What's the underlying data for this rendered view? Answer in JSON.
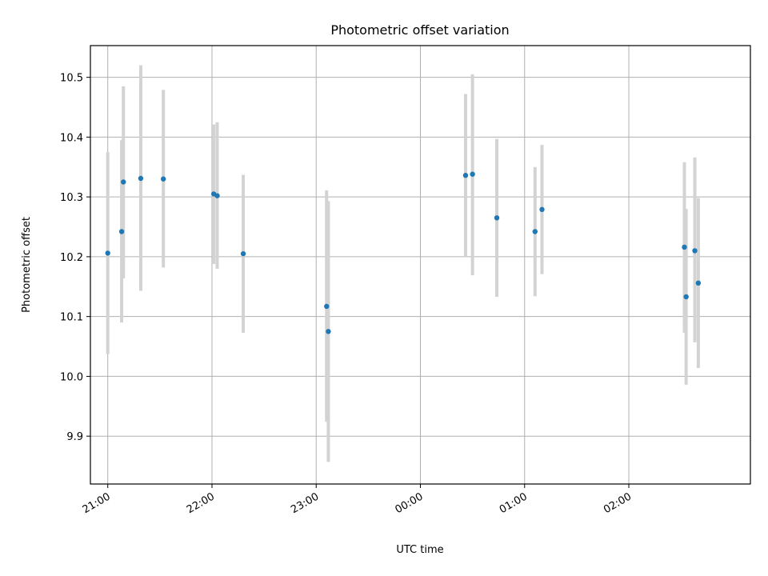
{
  "chart_data": {
    "type": "scatter",
    "title": "Photometric offset variation",
    "xlabel": "UTC time",
    "ylabel": "Photometric offset",
    "x_tick_labels": [
      "21:00",
      "22:00",
      "23:00",
      "00:00",
      "01:00",
      "02:00"
    ],
    "y_tick_labels": [
      "9.9",
      "10.0",
      "10.1",
      "10.2",
      "10.3",
      "10.4",
      "10.5"
    ],
    "y_ticks": [
      9.9,
      10.0,
      10.1,
      10.2,
      10.3,
      10.4,
      10.5
    ],
    "ylim": [
      9.82,
      10.553
    ],
    "xlim": [
      "20:50",
      "03:10"
    ],
    "grid": true,
    "colors": {
      "point": "#1f77b4",
      "errorbar": "#d3d3d3",
      "grid": "#b0b0b0"
    },
    "points": [
      {
        "x": "21:00",
        "y": 10.206,
        "yerr_low": 10.037,
        "yerr_high": 10.375
      },
      {
        "x": "21:08",
        "y": 10.242,
        "yerr_low": 10.09,
        "yerr_high": 10.395
      },
      {
        "x": "21:09",
        "y": 10.325,
        "yerr_low": 10.164,
        "yerr_high": 10.485
      },
      {
        "x": "21:19",
        "y": 10.331,
        "yerr_low": 10.143,
        "yerr_high": 10.52
      },
      {
        "x": "21:32",
        "y": 10.33,
        "yerr_low": 10.182,
        "yerr_high": 10.479
      },
      {
        "x": "22:01",
        "y": 10.305,
        "yerr_low": 10.188,
        "yerr_high": 10.421
      },
      {
        "x": "22:03",
        "y": 10.302,
        "yerr_low": 10.18,
        "yerr_high": 10.425
      },
      {
        "x": "22:18",
        "y": 10.205,
        "yerr_low": 10.073,
        "yerr_high": 10.337
      },
      {
        "x": "23:06",
        "y": 10.117,
        "yerr_low": 9.924,
        "yerr_high": 10.311
      },
      {
        "x": "23:07",
        "y": 10.075,
        "yerr_low": 9.857,
        "yerr_high": 10.293
      },
      {
        "x": "00:26",
        "y": 10.336,
        "yerr_low": 10.2,
        "yerr_high": 10.472
      },
      {
        "x": "00:30",
        "y": 10.338,
        "yerr_low": 10.169,
        "yerr_high": 10.505
      },
      {
        "x": "00:44",
        "y": 10.265,
        "yerr_low": 10.133,
        "yerr_high": 10.397
      },
      {
        "x": "01:06",
        "y": 10.242,
        "yerr_low": 10.134,
        "yerr_high": 10.35
      },
      {
        "x": "01:10",
        "y": 10.279,
        "yerr_low": 10.171,
        "yerr_high": 10.387
      },
      {
        "x": "02:32",
        "y": 10.216,
        "yerr_low": 10.073,
        "yerr_high": 10.358
      },
      {
        "x": "02:33",
        "y": 10.133,
        "yerr_low": 9.986,
        "yerr_high": 10.28
      },
      {
        "x": "02:38",
        "y": 10.21,
        "yerr_low": 10.057,
        "yerr_high": 10.366
      },
      {
        "x": "02:40",
        "y": 10.156,
        "yerr_low": 10.014,
        "yerr_high": 10.298
      }
    ]
  }
}
